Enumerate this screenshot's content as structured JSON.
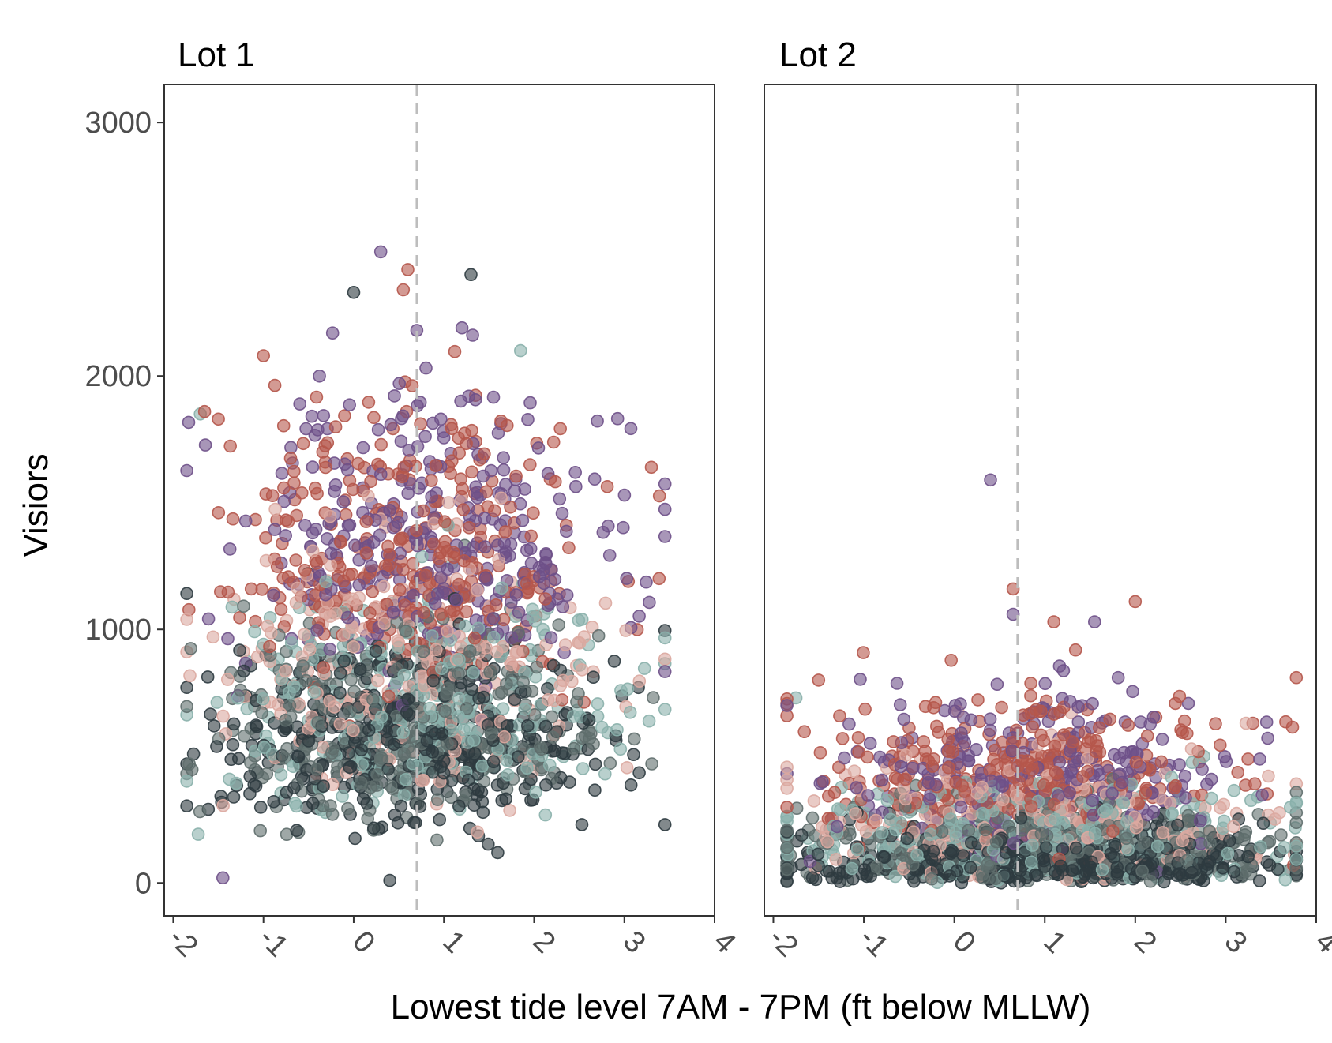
{
  "chart_data": {
    "type": "scatter",
    "xlabel": "Lowest tide level 7AM - 7PM (ft below MLLW)",
    "ylabel": "Visiors",
    "xlim": [
      -2.1,
      4.0
    ],
    "ylim": [
      -130,
      3150
    ],
    "x_ticks": [
      "-2",
      "-1",
      "0",
      "1",
      "2",
      "3",
      "4"
    ],
    "y_ticks": [
      "0",
      "1000",
      "2000",
      "3000"
    ],
    "x_ticks_values": [
      -2,
      -1,
      0,
      1,
      2,
      3,
      4
    ],
    "y_ticks_values": [
      0,
      1000,
      2000,
      3000
    ],
    "reference_line_x": 0.7,
    "grid": false,
    "legend": "none",
    "point_colors": [
      "#b5564b",
      "#6e5088",
      "#dba8a0",
      "#8ab0ab",
      "#5f6e6d",
      "#2e3b40"
    ],
    "panels": [
      {
        "title": "Lot 1",
        "clusters": [
          {
            "color_index": 5,
            "n": 420,
            "x_mean": 0.6,
            "x_sd": 1.1,
            "y_mean": 560,
            "y_sd": 210
          },
          {
            "color_index": 4,
            "n": 320,
            "x_mean": 0.6,
            "x_sd": 1.1,
            "y_mean": 620,
            "y_sd": 230
          },
          {
            "color_index": 3,
            "n": 300,
            "x_mean": 0.6,
            "x_sd": 1.1,
            "y_mean": 700,
            "y_sd": 260
          },
          {
            "color_index": 2,
            "n": 260,
            "x_mean": 0.6,
            "x_sd": 1.1,
            "y_mean": 820,
            "y_sd": 300
          },
          {
            "color_index": 0,
            "n": 330,
            "x_mean": 0.7,
            "x_sd": 1.05,
            "y_mean": 1280,
            "y_sd": 300
          },
          {
            "color_index": 1,
            "n": 330,
            "x_mean": 0.9,
            "x_sd": 1.05,
            "y_mean": 1320,
            "y_sd": 280
          }
        ],
        "highlights": [
          {
            "x": 0.3,
            "y": 2490,
            "color_index": 1
          },
          {
            "x": 0.6,
            "y": 2420,
            "color_index": 0
          },
          {
            "x": 1.3,
            "y": 2400,
            "color_index": 5
          },
          {
            "x": 0.0,
            "y": 2330,
            "color_index": 5
          },
          {
            "x": 0.55,
            "y": 2340,
            "color_index": 0
          },
          {
            "x": 1.2,
            "y": 2190,
            "color_index": 1
          },
          {
            "x": 0.7,
            "y": 2180,
            "color_index": 1
          },
          {
            "x": 1.85,
            "y": 2100,
            "color_index": 3
          },
          {
            "x": -1.0,
            "y": 2080,
            "color_index": 0
          },
          {
            "x": 3.3,
            "y": 1640,
            "color_index": 0
          },
          {
            "x": 3.45,
            "y": 230,
            "color_index": 5
          },
          {
            "x": -1.45,
            "y": 20,
            "color_index": 1
          },
          {
            "x": 0.4,
            "y": 10,
            "color_index": 5
          },
          {
            "x": -1.7,
            "y": 1850,
            "color_index": 3
          },
          {
            "x": -1.5,
            "y": 1830,
            "color_index": 0
          }
        ]
      },
      {
        "title": "Lot 2",
        "clusters": [
          {
            "color_index": 5,
            "n": 480,
            "x_mean": 0.9,
            "x_sd": 1.3,
            "y_mean": 80,
            "y_sd": 75
          },
          {
            "color_index": 4,
            "n": 340,
            "x_mean": 0.9,
            "x_sd": 1.3,
            "y_mean": 130,
            "y_sd": 100
          },
          {
            "color_index": 3,
            "n": 300,
            "x_mean": 0.9,
            "x_sd": 1.3,
            "y_mean": 170,
            "y_sd": 120
          },
          {
            "color_index": 2,
            "n": 260,
            "x_mean": 0.9,
            "x_sd": 1.3,
            "y_mean": 230,
            "y_sd": 150
          },
          {
            "color_index": 0,
            "n": 300,
            "x_mean": 0.7,
            "x_sd": 1.1,
            "y_mean": 420,
            "y_sd": 170
          },
          {
            "color_index": 1,
            "n": 280,
            "x_mean": 0.9,
            "x_sd": 1.1,
            "y_mean": 400,
            "y_sd": 170
          }
        ],
        "highlights": [
          {
            "x": 0.4,
            "y": 1590,
            "color_index": 1
          },
          {
            "x": 0.65,
            "y": 1160,
            "color_index": 0
          },
          {
            "x": 2.0,
            "y": 1110,
            "color_index": 0
          },
          {
            "x": 0.65,
            "y": 1060,
            "color_index": 1
          },
          {
            "x": 1.55,
            "y": 1030,
            "color_index": 1
          },
          {
            "x": 1.1,
            "y": 1030,
            "color_index": 0
          },
          {
            "x": 3.3,
            "y": 630,
            "color_index": 0
          },
          {
            "x": -1.75,
            "y": 730,
            "color_index": 3
          },
          {
            "x": -1.5,
            "y": 800,
            "color_index": 0
          },
          {
            "x": 3.75,
            "y": 70,
            "color_index": 0
          }
        ]
      }
    ]
  }
}
